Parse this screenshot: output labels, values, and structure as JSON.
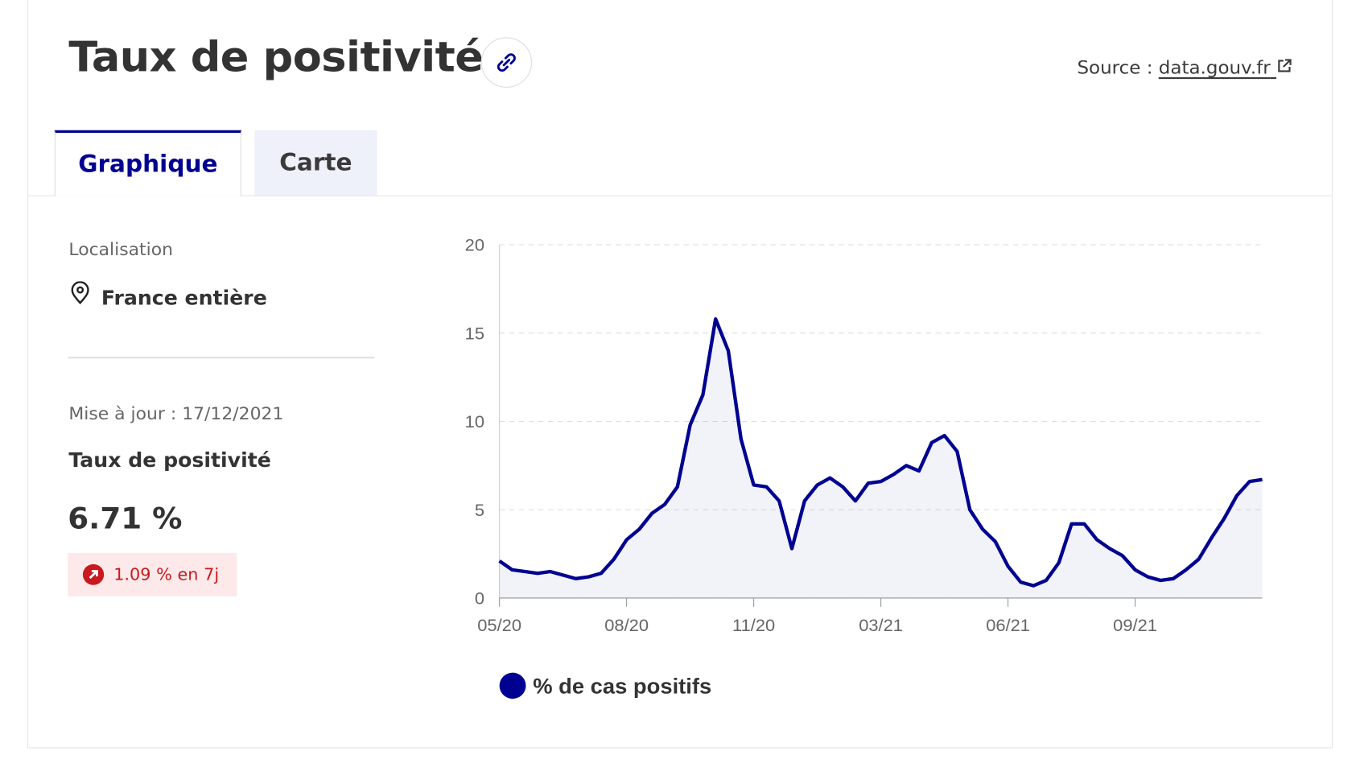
{
  "header": {
    "title": "Taux de positivité",
    "source_label": "Source :",
    "source_link": "data.gouv.fr"
  },
  "tabs": [
    "Graphique",
    "Carte"
  ],
  "sidebar": {
    "location_label": "Localisation",
    "location": "France entière",
    "updated": "Mise à jour : 17/12/2021",
    "indicator": "Taux de positivité",
    "value": "6.71 %",
    "change": "1.09 % en 7j"
  },
  "chart_data": {
    "type": "line",
    "categories": [
      "05/20",
      null,
      null,
      null,
      null,
      null,
      null,
      null,
      null,
      null,
      "08/20",
      null,
      null,
      null,
      null,
      null,
      null,
      null,
      null,
      null,
      "11/20",
      null,
      null,
      null,
      null,
      null,
      null,
      null,
      null,
      null,
      "03/21",
      null,
      null,
      null,
      null,
      null,
      null,
      null,
      null,
      null,
      "06/21",
      null,
      null,
      null,
      null,
      null,
      null,
      null,
      null,
      null,
      "09/21",
      null,
      null,
      null,
      null,
      null,
      null,
      null,
      null,
      null,
      null
    ],
    "series": [
      {
        "name": "% de cas positifs",
        "color": "#000091",
        "values": [
          2.1,
          1.6,
          1.5,
          1.4,
          1.5,
          1.3,
          1.1,
          1.2,
          1.4,
          2.2,
          3.3,
          3.9,
          4.8,
          5.3,
          6.3,
          9.8,
          11.5,
          15.8,
          14.0,
          9.0,
          6.4,
          6.3,
          5.5,
          2.8,
          5.5,
          6.4,
          6.8,
          6.3,
          5.5,
          6.5,
          6.6,
          7.0,
          7.5,
          7.2,
          8.8,
          9.2,
          8.3,
          5.0,
          3.9,
          3.2,
          1.8,
          0.9,
          0.7,
          1.0,
          2.0,
          4.2,
          4.2,
          3.3,
          2.8,
          2.4,
          1.6,
          1.2,
          1.0,
          1.1,
          1.6,
          2.2,
          3.4,
          4.5,
          5.8,
          6.6,
          6.71
        ]
      }
    ],
    "ylim": [
      0,
      20
    ],
    "yticks": [
      0,
      5,
      10,
      15,
      20
    ],
    "grid": true,
    "legend": "bottom"
  }
}
